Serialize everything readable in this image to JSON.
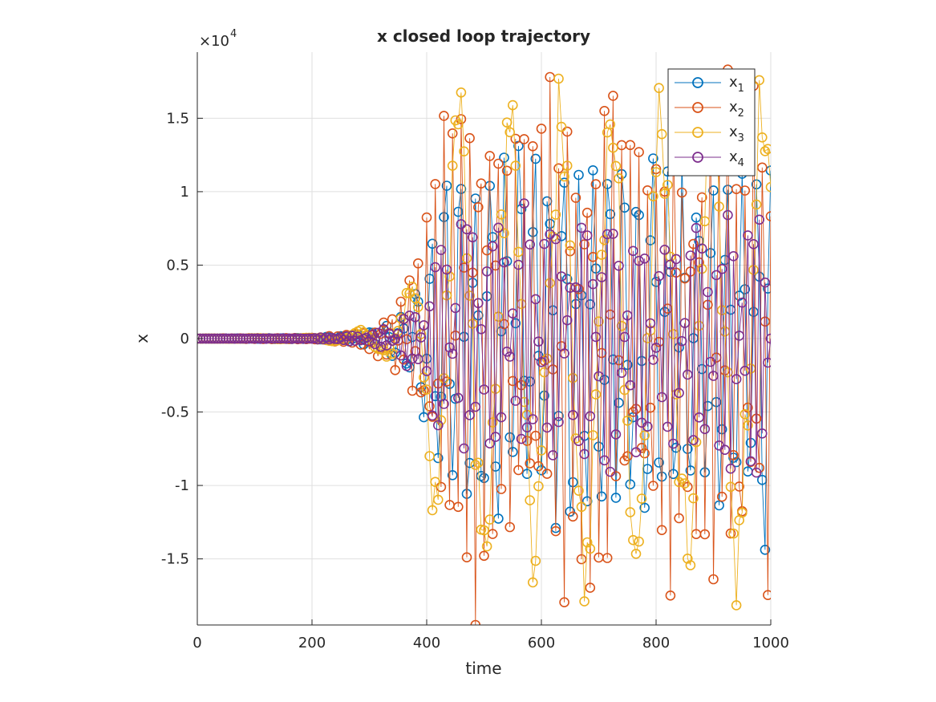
{
  "chart_data": {
    "type": "line",
    "title": "x closed loop trajectory",
    "xlabel": "time",
    "ylabel": "x",
    "exponent_label": "×10",
    "exponent_power": "4",
    "xlim": [
      0,
      1000
    ],
    "ylim": [
      -1.95,
      1.95
    ],
    "y_scale_factor": 10000,
    "xticks": [
      0,
      200,
      400,
      600,
      800,
      1000
    ],
    "xtick_labels": [
      "0",
      "200",
      "400",
      "600",
      "800",
      "1000"
    ],
    "yticks": [
      -1.5,
      -1,
      -0.5,
      0,
      0.5,
      1,
      1.5
    ],
    "ytick_labels": [
      "-1.5",
      "-1",
      "-0.5",
      "0",
      "0.5",
      "1",
      "1.5"
    ],
    "grid": true,
    "legend_position": "top-right",
    "marker": "circle",
    "trajectory": {
      "sample_step": 5,
      "growth_start": 200,
      "saturation_time": 410,
      "envelope_knots": [
        [
          0,
          0
        ],
        [
          200,
          0.006
        ],
        [
          260,
          0.03
        ],
        [
          300,
          0.08
        ],
        [
          330,
          0.15
        ],
        [
          360,
          0.3
        ],
        [
          380,
          0.5
        ],
        [
          400,
          0.9
        ],
        [
          420,
          1.4
        ],
        [
          450,
          1.85
        ],
        [
          500,
          1.7
        ],
        [
          600,
          1.8
        ],
        [
          700,
          1.75
        ],
        [
          800,
          1.7
        ],
        [
          900,
          1.75
        ],
        [
          1000,
          1.9
        ]
      ]
    },
    "series": [
      {
        "name": "x",
        "subscript": "1",
        "color": "#0072BD",
        "amplitude": 0.75,
        "period": 6.2
      },
      {
        "name": "x",
        "subscript": "2",
        "color": "#D95319",
        "amplitude": 1.0,
        "period": 7.4
      },
      {
        "name": "x",
        "subscript": "3",
        "color": "#EDB120",
        "amplitude": 0.97,
        "period": 5.3
      },
      {
        "name": "x",
        "subscript": "4",
        "color": "#7E2F8E",
        "amplitude": 0.5,
        "period": 9.1
      }
    ]
  }
}
